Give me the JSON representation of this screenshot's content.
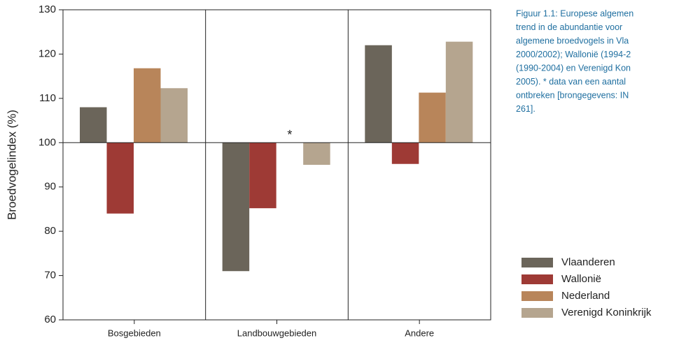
{
  "chart_data": {
    "type": "bar",
    "ylabel": "Broedvogelindex (%)",
    "categories": [
      "Bosgebieden",
      "Landbouwgebieden",
      "Andere"
    ],
    "series": [
      {
        "name": "Vlaanderen",
        "color": "#6b655a",
        "values": [
          108,
          71,
          122
        ]
      },
      {
        "name": "Wallonië",
        "color": "#9e3a35",
        "values": [
          84,
          85.2,
          95.2
        ]
      },
      {
        "name": "Nederland",
        "color": "#b8855a",
        "values": [
          116.8,
          null,
          111.3
        ]
      },
      {
        "name": "Verenigd Koninkrijk",
        "color": "#b5a58f",
        "values": [
          112.3,
          95,
          122.8
        ]
      }
    ],
    "baseline": 100,
    "annotation": "*",
    "ylim": [
      60,
      130
    ],
    "yticks": [
      60,
      70,
      80,
      90,
      100,
      110,
      120,
      130
    ],
    "caption": [
      "Figuur 1.1: Europese algemen",
      "trend in de abundantie voor",
      "algemene broedvogels in Vla",
      "2000/2002); Wallonië (1994-2",
      "(1990-2004) en Verenigd Kon",
      "2005). * data van een aantal",
      "ontbreken [brongegevens: IN",
      "261]."
    ]
  }
}
